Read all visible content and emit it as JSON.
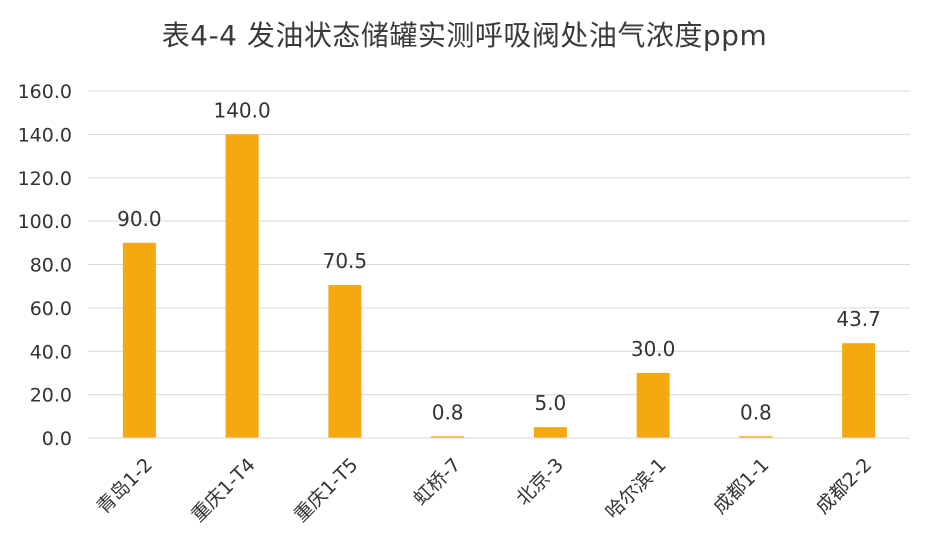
{
  "chart_data": {
    "type": "bar",
    "title": "表4-4 发油状态储罐实测呼吸阀处油气浓度ppm",
    "categories": [
      "青岛1-2",
      "重庆1-T4",
      "重庆1-T5",
      "虹桥-7",
      "北京-3",
      "哈尔滨-1",
      "成都1-1",
      "成都2-2"
    ],
    "values": [
      90.0,
      140.0,
      70.5,
      0.8,
      5.0,
      30.0,
      0.8,
      43.7
    ],
    "data_labels": [
      "90.0",
      "140.0",
      "70.5",
      "0.8",
      "5.0",
      "30.0",
      "0.8",
      "43.7"
    ],
    "ylim": [
      0,
      160
    ],
    "yticks": [
      "0.0",
      "20.0",
      "40.0",
      "60.0",
      "80.0",
      "100.0",
      "120.0",
      "140.0",
      "160.0"
    ],
    "xlabel": "",
    "ylabel": "",
    "grid": true,
    "legend": "none",
    "bar_color": "#F5A80F",
    "grid_color": "#d9d9d9"
  }
}
